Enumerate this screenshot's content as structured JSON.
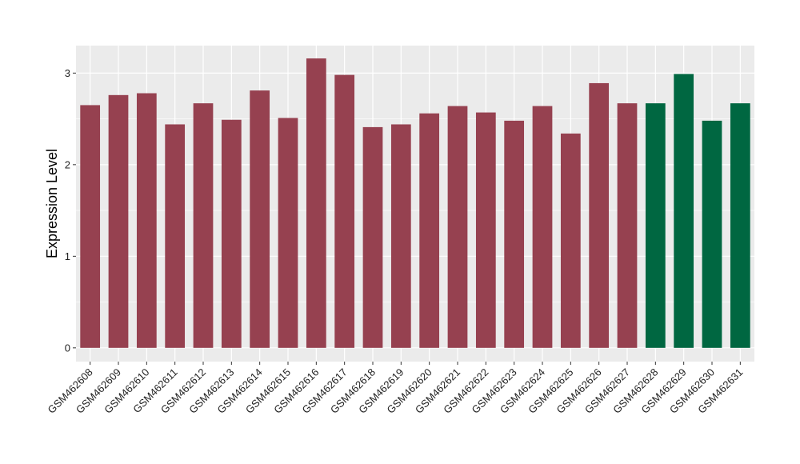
{
  "chart_data": {
    "type": "bar",
    "title": "",
    "xlabel": "",
    "ylabel": "Expression Level",
    "ylim": [
      -0.15,
      3.3
    ],
    "yticks": [
      0,
      1,
      2,
      3
    ],
    "grid": true,
    "legend": "none",
    "colors": {
      "group1": "#964150",
      "group2": "#006741",
      "panel": "#ebebeb",
      "grid": "#ffffff"
    },
    "categories": [
      "GSM462608",
      "GSM462609",
      "GSM462610",
      "GSM462611",
      "GSM462612",
      "GSM462613",
      "GSM462614",
      "GSM462615",
      "GSM462616",
      "GSM462617",
      "GSM462618",
      "GSM462619",
      "GSM462620",
      "GSM462621",
      "GSM462622",
      "GSM462623",
      "GSM462624",
      "GSM462625",
      "GSM462626",
      "GSM462627",
      "GSM462628",
      "GSM462629",
      "GSM462630",
      "GSM462631"
    ],
    "values": [
      2.65,
      2.76,
      2.78,
      2.44,
      2.67,
      2.49,
      2.81,
      2.51,
      3.16,
      2.98,
      2.41,
      2.44,
      2.56,
      2.64,
      2.57,
      2.48,
      2.64,
      2.34,
      2.89,
      2.67,
      2.67,
      2.99,
      2.48,
      2.67
    ],
    "groups": [
      1,
      1,
      1,
      1,
      1,
      1,
      1,
      1,
      1,
      1,
      1,
      1,
      1,
      1,
      1,
      1,
      1,
      1,
      1,
      1,
      2,
      2,
      2,
      2
    ]
  }
}
